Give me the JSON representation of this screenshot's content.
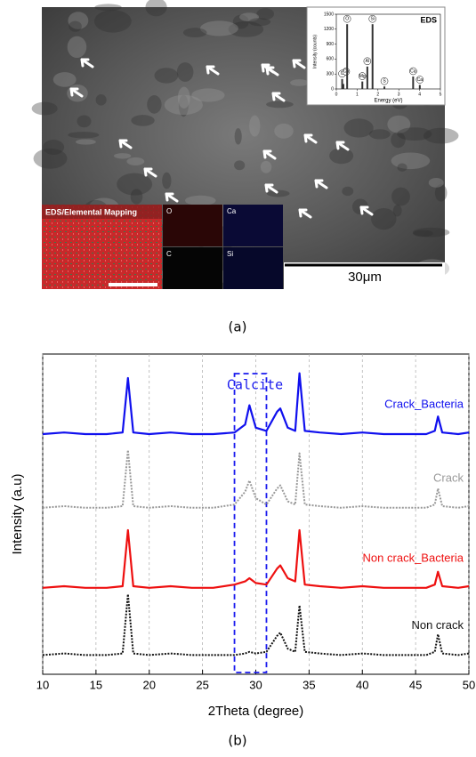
{
  "figure_a": {
    "caption": "(a)",
    "mapping_title": "EDS/Elemental Mapping",
    "map_panels": [
      "O",
      "Ca",
      "C",
      "Si"
    ],
    "scale_bar": "30μm"
  },
  "figure_b": {
    "caption": "(b)"
  },
  "chart_data": [
    {
      "type": "bar",
      "title": "EDS",
      "x_label": "Energy (eV)",
      "y_label": "Intensity (counts)",
      "x": [
        0.28,
        0.34,
        0.52,
        1.25,
        1.49,
        1.74,
        2.31,
        3.69,
        4.01
      ],
      "values": [
        200,
        100,
        1300,
        150,
        450,
        1300,
        50,
        250,
        80
      ],
      "peak_labels": [
        "C",
        "Ca",
        "O",
        "Mg",
        "Al",
        "Si",
        "S",
        "Ca",
        "Ca"
      ],
      "color": "#333333",
      "xlim": [
        0,
        5
      ],
      "xticks": [
        0,
        1,
        2,
        3,
        4,
        5
      ],
      "ylim": [
        0,
        1500
      ],
      "yticks": [
        0,
        300,
        600,
        900,
        1200,
        1500
      ]
    },
    {
      "type": "line",
      "x_label": "2Theta (degree)",
      "y_label": "Intensity (a.u)",
      "x": [
        10,
        12,
        14,
        16,
        17.5,
        18,
        18.5,
        20,
        22,
        24,
        26,
        28,
        29,
        29.4,
        30,
        31,
        32,
        32.3,
        33,
        33.7,
        34.1,
        34.6,
        36,
        38,
        40,
        42,
        44,
        46,
        46.8,
        47.1,
        47.5,
        49,
        50
      ],
      "series": [
        {
          "name": "Crack_Bacteria",
          "color": "#1010ee",
          "style": "solid",
          "values": [
            75,
            75.5,
            75,
            75,
            75.5,
            92.5,
            75.5,
            75,
            75.5,
            75,
            75,
            75.5,
            78,
            84,
            77,
            76,
            82,
            83,
            77,
            76,
            94,
            76,
            75.5,
            75,
            75.5,
            75,
            75,
            75,
            76,
            80.5,
            75.5,
            75,
            75.5
          ]
        },
        {
          "name": "Crack",
          "color": "#999999",
          "style": "dotted",
          "values": [
            52,
            52.5,
            52,
            52,
            52.5,
            70,
            52.5,
            52,
            52.5,
            52,
            52,
            53,
            57,
            60.5,
            55,
            53,
            58,
            59,
            54,
            53,
            69,
            53,
            52.5,
            52,
            52.5,
            52,
            52,
            52,
            53,
            58,
            52.5,
            52,
            52.5
          ]
        },
        {
          "name": "Non crack_Bacteria",
          "color": "#ee1010",
          "style": "solid",
          "values": [
            27,
            27.5,
            27,
            27,
            27.5,
            45,
            27.5,
            27,
            27.5,
            27,
            27,
            28,
            29,
            30,
            28.5,
            28,
            33,
            34,
            30,
            29,
            45,
            28,
            27.5,
            27,
            27.5,
            27,
            27,
            27,
            28,
            32,
            27.5,
            27,
            27.5
          ]
        },
        {
          "name": "Non crack",
          "color": "#111111",
          "style": "dotted",
          "values": [
            6,
            6.5,
            6,
            6,
            6.5,
            25,
            6.5,
            6,
            6.5,
            6,
            6,
            6,
            6.5,
            7,
            6.5,
            7,
            12,
            13,
            8,
            7,
            21.5,
            7,
            6.5,
            6,
            6.5,
            6,
            6,
            6,
            7,
            12.5,
            6.5,
            6,
            6.5
          ]
        }
      ],
      "annotation": {
        "label": "Calcite",
        "x": [
          28,
          31
        ]
      },
      "xlim": [
        10,
        50
      ],
      "xticks": [
        10,
        15,
        20,
        25,
        30,
        35,
        40,
        45,
        50
      ],
      "ylim": [
        0,
        100
      ],
      "grid": true
    }
  ]
}
